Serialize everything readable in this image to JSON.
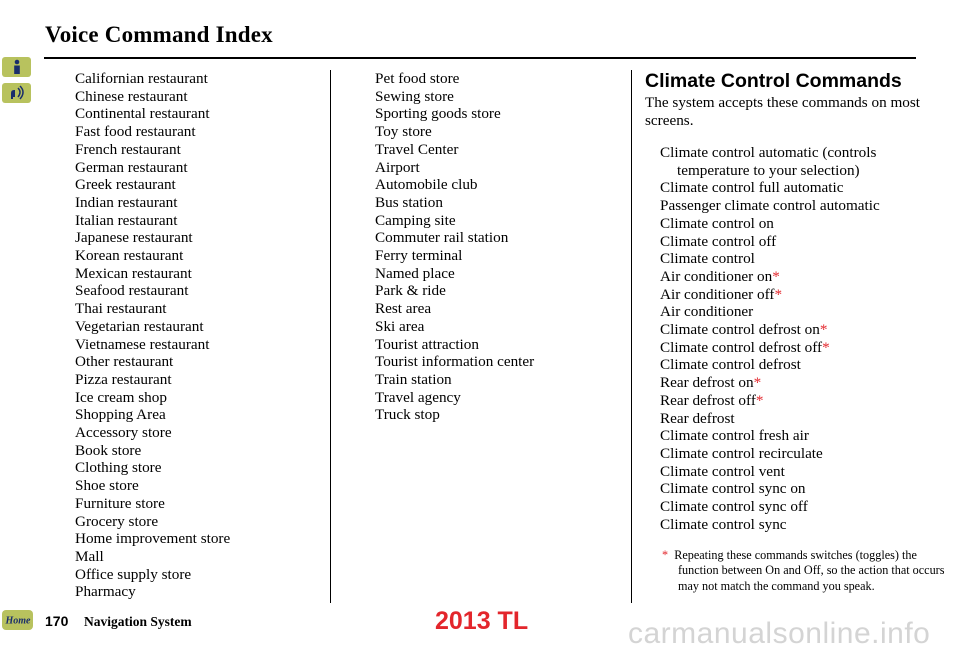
{
  "header": {
    "title": "Voice Command Index"
  },
  "side_buttons": [
    {
      "icon": "info-icon"
    },
    {
      "icon": "voice-icon"
    }
  ],
  "column1": [
    "Californian restaurant",
    "Chinese restaurant",
    "Continental restaurant",
    "Fast food restaurant",
    "French restaurant",
    "German restaurant",
    "Greek restaurant",
    "Indian restaurant",
    "Italian restaurant",
    "Japanese restaurant",
    "Korean restaurant",
    "Mexican restaurant",
    "Seafood restaurant",
    "Thai restaurant",
    "Vegetarian restaurant",
    "Vietnamese restaurant",
    "Other restaurant",
    "Pizza restaurant",
    "Ice cream shop",
    "Shopping Area",
    "Accessory store",
    "Book store",
    "Clothing store",
    "Shoe store",
    "Furniture store",
    "Grocery store",
    "Home improvement store",
    "Mall",
    "Office supply store",
    "Pharmacy"
  ],
  "column2": [
    "Pet food store",
    "Sewing store",
    "Sporting goods store",
    "Toy store",
    "Travel Center",
    "Airport",
    "Automobile club",
    "Bus station",
    "Camping site",
    "Commuter rail station",
    "Ferry terminal",
    "Named place",
    "Park & ride",
    "Rest area",
    "Ski area",
    "Tourist attraction",
    "Tourist information center",
    "Train station",
    "Travel agency",
    "Truck stop"
  ],
  "climate": {
    "heading": "Climate Control Commands",
    "intro": "The system accepts these commands on most screens.",
    "commands": [
      {
        "text": "Climate control automatic (controls temperature to your selection)",
        "star": false
      },
      {
        "text": "Climate control full automatic",
        "star": false
      },
      {
        "text": "Passenger climate control automatic",
        "star": false
      },
      {
        "text": "Climate control on",
        "star": false
      },
      {
        "text": "Climate control off",
        "star": false
      },
      {
        "text": "Climate control",
        "star": false
      },
      {
        "text": "Air conditioner on",
        "star": true
      },
      {
        "text": "Air conditioner off",
        "star": true
      },
      {
        "text": "Air conditioner",
        "star": false
      },
      {
        "text": "Climate control defrost on",
        "star": true
      },
      {
        "text": "Climate control defrost off",
        "star": true
      },
      {
        "text": "Climate control defrost",
        "star": false
      },
      {
        "text": "Rear defrost on",
        "star": true
      },
      {
        "text": "Rear defrost off",
        "star": true
      },
      {
        "text": "Rear defrost",
        "star": false
      },
      {
        "text": "Climate control fresh air",
        "star": false
      },
      {
        "text": "Climate control recirculate",
        "star": false
      },
      {
        "text": "Climate control vent",
        "star": false
      },
      {
        "text": "Climate control sync on",
        "star": false
      },
      {
        "text": "Climate control sync off",
        "star": false
      },
      {
        "text": "Climate control sync",
        "star": false
      }
    ],
    "asterisk": "*",
    "footnote": "Repeating these commands switches (toggles) the function between On and Off, so the action that occurs may not match the command you speak."
  },
  "footer": {
    "home_label": "Home",
    "page_number": "170",
    "page_title": "Navigation System",
    "watermark": "2013 TL",
    "site": "carmanualsonline.info"
  }
}
